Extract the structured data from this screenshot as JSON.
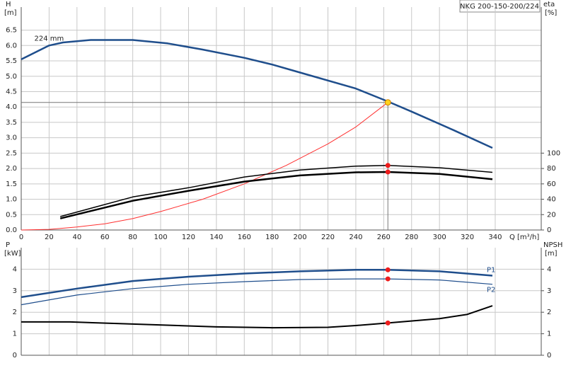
{
  "chart_data": [
    {
      "type": "line",
      "title": "NKG 200-150-200/224",
      "ylabel": "H",
      "yunit": "[m]",
      "y2label": "eta",
      "y2unit": "[%]",
      "xlabel": "Q [m³/h]",
      "xlim": [
        0,
        373
      ],
      "xticks": [
        0,
        20,
        40,
        60,
        80,
        100,
        120,
        140,
        160,
        180,
        200,
        220,
        240,
        260,
        280,
        300,
        320,
        340
      ],
      "ylim": [
        0,
        7.25
      ],
      "yticks": [
        {
          "value": 0,
          "label": "0.0"
        },
        0.5,
        {
          "value": 1,
          "label": "1.0"
        },
        1.5,
        {
          "value": 2,
          "label": "2.0"
        },
        2.5,
        {
          "value": 3,
          "label": "3.0"
        },
        3.5,
        {
          "value": 4,
          "label": "4.0"
        },
        4.5,
        {
          "value": 5,
          "label": "5.0"
        },
        5.5,
        {
          "value": 6,
          "label": "6.0"
        },
        6.5
      ],
      "y2lim": [
        0,
        290
      ],
      "y2ticks": [
        0,
        20,
        40,
        60,
        80,
        100
      ],
      "grid": true,
      "duty_point": {
        "x": 263,
        "y": 4.15,
        "color": "#ffd21f"
      },
      "series": [
        {
          "name": "224 mm",
          "color": "#1f4e8c",
          "width": 2.5,
          "x": [
            0,
            20,
            30,
            50,
            80,
            105,
            130,
            160,
            180,
            200,
            240,
            263,
            280,
            310,
            338
          ],
          "values": [
            5.55,
            6.0,
            6.1,
            6.18,
            6.18,
            6.07,
            5.87,
            5.6,
            5.38,
            5.12,
            4.6,
            4.18,
            3.85,
            3.25,
            2.67
          ]
        },
        {
          "color": "#ff3030",
          "width": 1,
          "x": [
            0,
            20,
            40,
            60,
            80,
            100,
            130,
            160,
            190,
            220,
            240,
            263
          ],
          "values": [
            0,
            0.02,
            0.1,
            0.2,
            0.37,
            0.6,
            1.0,
            1.5,
            2.1,
            2.8,
            3.35,
            4.15
          ]
        },
        {
          "color": "#000000",
          "width": 1.5,
          "axis": "y2",
          "x": [
            28,
            80,
            120,
            160,
            200,
            240,
            263,
            300,
            338
          ],
          "values": [
            17.5,
            43,
            55,
            69,
            78,
            83,
            84,
            81,
            75
          ],
          "point": [
            263,
            84
          ]
        },
        {
          "color": "#000000",
          "width": 2.5,
          "axis": "y2",
          "x": [
            28,
            80,
            120,
            160,
            200,
            240,
            263,
            300,
            338
          ],
          "values": [
            15,
            38,
            51,
            63,
            71,
            75,
            75.5,
            73,
            66
          ],
          "point": [
            263,
            75.5
          ]
        }
      ]
    },
    {
      "type": "line",
      "ylabel": "P",
      "yunit": "[kW]",
      "y2label": "NPSH",
      "y2unit": "[m]",
      "xlim": [
        0,
        373
      ],
      "ylim": [
        0,
        5
      ],
      "yticks": [
        0,
        1,
        2,
        3,
        4
      ],
      "y2lim": [
        0,
        5
      ],
      "y2ticks": [
        0,
        1,
        2,
        3,
        4
      ],
      "grid": true,
      "series": [
        {
          "name": "P1",
          "color": "#1f4e8c",
          "width": 2.5,
          "x": [
            0,
            40,
            80,
            120,
            160,
            200,
            240,
            263,
            300,
            338
          ],
          "values": [
            2.7,
            3.1,
            3.45,
            3.65,
            3.8,
            3.9,
            3.97,
            3.97,
            3.9,
            3.7
          ],
          "point": [
            263,
            3.97
          ]
        },
        {
          "name": "P2",
          "color": "#1f4e8c",
          "width": 1.2,
          "x": [
            0,
            40,
            80,
            120,
            160,
            200,
            240,
            263,
            300,
            338
          ],
          "values": [
            2.35,
            2.8,
            3.1,
            3.3,
            3.42,
            3.52,
            3.55,
            3.55,
            3.5,
            3.3
          ],
          "point": [
            263,
            3.55
          ]
        },
        {
          "color": "#000000",
          "width": 2,
          "axis": "y2",
          "x": [
            0,
            35,
            80,
            140,
            180,
            220,
            240,
            263,
            300,
            320,
            338
          ],
          "values": [
            1.55,
            1.55,
            1.45,
            1.32,
            1.28,
            1.3,
            1.38,
            1.5,
            1.7,
            1.9,
            2.3
          ],
          "point": [
            263,
            1.5
          ]
        }
      ]
    }
  ]
}
